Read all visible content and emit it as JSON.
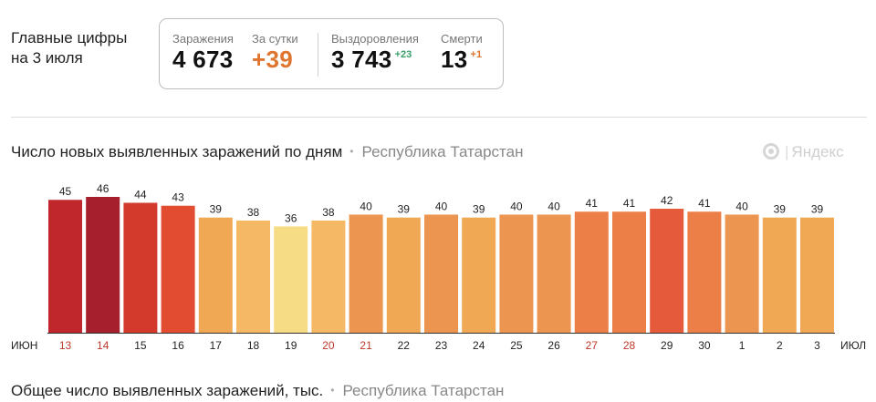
{
  "header": {
    "title_line1": "Главные цифры",
    "title_line2": "на 3 июля"
  },
  "stats": {
    "infections_label": "Заражения",
    "infections_value": "4 673",
    "per_day_label": "За сутки",
    "per_day_value": "+39",
    "recovered_label": "Выздоровления",
    "recovered_value": "3 743",
    "recovered_delta": "+23",
    "deaths_label": "Смерти",
    "deaths_value": "13",
    "deaths_delta": "+1"
  },
  "chart_title": {
    "text": "Число новых выявленных заражений по дням",
    "separator": "•",
    "region": "Республика Татарстан"
  },
  "brand": {
    "separator": "|",
    "name": "Яндекс"
  },
  "footer_title": {
    "text": "Общее число выявленных заражений, тыс.",
    "separator": "•",
    "region": "Республика Татарстан"
  },
  "colors": {
    "weekend_label": "#c0392b",
    "weekday_label": "#222222",
    "axis": "#333333"
  },
  "chart_data": {
    "type": "bar",
    "title": "Число новых выявленных заражений по дням",
    "subtitle": "Республика Татарстан",
    "x_start_label": "ИЮН",
    "x_end_label": "ИЮЛ",
    "categories": [
      "13",
      "14",
      "15",
      "16",
      "17",
      "18",
      "19",
      "20",
      "21",
      "22",
      "23",
      "24",
      "25",
      "26",
      "27",
      "28",
      "29",
      "30",
      "1",
      "2",
      "3"
    ],
    "values": [
      45,
      46,
      44,
      43,
      39,
      38,
      36,
      38,
      40,
      39,
      40,
      39,
      40,
      40,
      41,
      41,
      42,
      41,
      40,
      39,
      39
    ],
    "bar_colors": [
      "#c0272d",
      "#a51f2d",
      "#d33a2c",
      "#e24d31",
      "#f0a855",
      "#f5b865",
      "#f7dc86",
      "#f5b865",
      "#ec9550",
      "#f0a855",
      "#ec9550",
      "#f0a855",
      "#ec9550",
      "#ec9550",
      "#ec7f48",
      "#ec7f48",
      "#e55a3a",
      "#ec7f48",
      "#ec9550",
      "#f0a855",
      "#f0a855"
    ],
    "weekend_categories": [
      "13",
      "14",
      "20",
      "21",
      "27",
      "28"
    ],
    "ylim": [
      0,
      46
    ],
    "grid": false,
    "legend": "none"
  }
}
